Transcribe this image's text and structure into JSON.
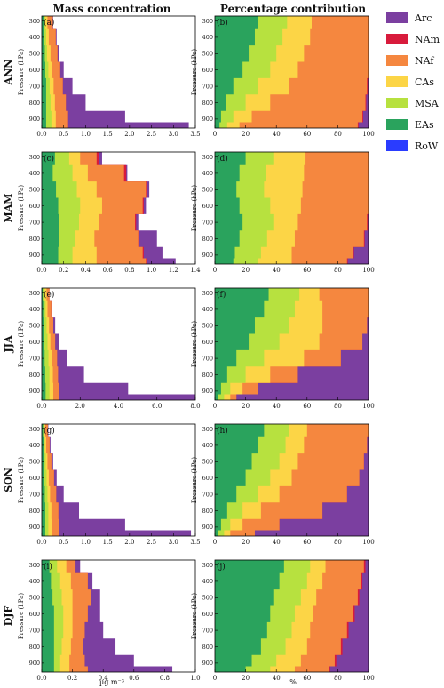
{
  "col_titles": [
    "Mass concentration",
    "Percentage contribution"
  ],
  "ylabel": "Pressure (hPa)",
  "left_xlabel": "µg m⁻³",
  "right_xlabel": "%",
  "legend": [
    {
      "name": "Arc",
      "color": "#7b3fa0"
    },
    {
      "name": "NAm",
      "color": "#d81b3c"
    },
    {
      "name": "NAf",
      "color": "#f5873f"
    },
    {
      "name": "CAs",
      "color": "#fcd546"
    },
    {
      "name": "MSA",
      "color": "#b7e13f"
    },
    {
      "name": "EAs",
      "color": "#2aa35d"
    },
    {
      "name": "RoW",
      "color": "#2a3cff"
    }
  ],
  "chart_data": [
    {
      "id": "ANN-mass",
      "row": "ANN",
      "panel": "(a)",
      "type": "area",
      "xlim": [
        0,
        3.5
      ],
      "xticks": [
        "0.0",
        "0.5",
        "1.0",
        "1.5",
        "2.0",
        "2.5",
        "3.0",
        "3.5"
      ],
      "yticks": [
        "300",
        "400",
        "500",
        "600",
        "700",
        "800",
        "900"
      ],
      "pressure": [
        300,
        400,
        500,
        600,
        700,
        800,
        900,
        940
      ],
      "series": [
        {
          "name": "EAs",
          "values": [
            0.04,
            0.05,
            0.07,
            0.08,
            0.1,
            0.1,
            0.1,
            0.1
          ]
        },
        {
          "name": "MSA",
          "values": [
            0.08,
            0.1,
            0.12,
            0.15,
            0.18,
            0.2,
            0.22,
            0.22
          ]
        },
        {
          "name": "CAs",
          "values": [
            0.13,
            0.16,
            0.2,
            0.24,
            0.27,
            0.3,
            0.32,
            0.32
          ]
        },
        {
          "name": "NAf",
          "values": [
            0.25,
            0.32,
            0.36,
            0.42,
            0.48,
            0.55,
            0.6,
            0.6
          ]
        },
        {
          "name": "NAm",
          "values": [
            0.25,
            0.32,
            0.36,
            0.42,
            0.48,
            0.55,
            0.6,
            0.6
          ]
        },
        {
          "name": "Arc",
          "values": [
            0.26,
            0.34,
            0.4,
            0.5,
            0.7,
            1.0,
            1.9,
            3.35
          ]
        }
      ]
    },
    {
      "id": "ANN-pct",
      "row": "ANN",
      "panel": "(b)",
      "type": "area",
      "xlim": [
        0,
        100
      ],
      "xticks": [
        "0",
        "20",
        "40",
        "60",
        "80",
        "100"
      ],
      "yticks": [
        "300",
        "400",
        "500",
        "600",
        "700",
        "800",
        "900"
      ],
      "pressure": [
        300,
        400,
        500,
        600,
        700,
        800,
        900,
        940
      ],
      "series": [
        {
          "name": "EAs",
          "values": [
            28,
            26,
            22,
            18,
            12,
            7,
            4,
            3
          ]
        },
        {
          "name": "MSA",
          "values": [
            47,
            44,
            40,
            36,
            28,
            20,
            12,
            8
          ]
        },
        {
          "name": "CAs",
          "values": [
            63,
            62,
            58,
            54,
            48,
            36,
            24,
            16
          ]
        },
        {
          "name": "NAf",
          "values": [
            100,
            100,
            100,
            100,
            99,
            98,
            96,
            93
          ]
        },
        {
          "name": "NAm",
          "values": [
            100,
            100,
            100,
            100,
            99.5,
            98.5,
            96.5,
            93.5
          ]
        },
        {
          "name": "Arc",
          "values": [
            100,
            100,
            100,
            100,
            100,
            100,
            100,
            100
          ]
        }
      ]
    },
    {
      "id": "MAM-mass",
      "row": "MAM",
      "panel": "(c)",
      "type": "area",
      "xlim": [
        0,
        1.4
      ],
      "xticks": [
        "0.0",
        "0.2",
        "0.4",
        "0.6",
        "0.8",
        "1.0",
        "1.2",
        "1.4"
      ],
      "yticks": [
        "300",
        "400",
        "500",
        "600",
        "700",
        "800",
        "900"
      ],
      "pressure": [
        300,
        400,
        500,
        600,
        700,
        800,
        900,
        940
      ],
      "series": [
        {
          "name": "EAs",
          "values": [
            0.12,
            0.1,
            0.13,
            0.15,
            0.16,
            0.16,
            0.15,
            0.15
          ]
        },
        {
          "name": "MSA",
          "values": [
            0.25,
            0.28,
            0.32,
            0.35,
            0.34,
            0.3,
            0.28,
            0.28
          ]
        },
        {
          "name": "CAs",
          "values": [
            0.35,
            0.42,
            0.5,
            0.55,
            0.52,
            0.48,
            0.5,
            0.5
          ]
        },
        {
          "name": "NAf",
          "values": [
            0.5,
            0.75,
            0.95,
            0.92,
            0.85,
            0.88,
            0.92,
            0.95
          ]
        },
        {
          "name": "NAm",
          "values": [
            0.52,
            0.77,
            0.96,
            0.93,
            0.86,
            0.89,
            0.93,
            0.96
          ]
        },
        {
          "name": "Arc",
          "values": [
            0.55,
            0.78,
            0.98,
            0.95,
            0.88,
            1.05,
            1.1,
            1.22
          ]
        }
      ]
    },
    {
      "id": "MAM-pct",
      "row": "MAM",
      "panel": "(d)",
      "type": "area",
      "xlim": [
        0,
        100
      ],
      "xticks": [
        "0",
        "20",
        "40",
        "60",
        "80",
        "100"
      ],
      "yticks": [
        "300",
        "400",
        "500",
        "600",
        "700",
        "800",
        "900"
      ],
      "pressure": [
        300,
        400,
        500,
        600,
        700,
        800,
        900,
        940
      ],
      "series": [
        {
          "name": "EAs",
          "values": [
            20,
            16,
            14,
            16,
            18,
            16,
            13,
            12
          ]
        },
        {
          "name": "MSA",
          "values": [
            38,
            33,
            32,
            36,
            38,
            34,
            30,
            28
          ]
        },
        {
          "name": "CAs",
          "values": [
            59,
            58,
            57,
            56,
            54,
            52,
            50,
            50
          ]
        },
        {
          "name": "NAf",
          "values": [
            100,
            100,
            100,
            100,
            99,
            97,
            90,
            86
          ]
        },
        {
          "name": "NAm",
          "values": [
            100,
            100,
            100,
            100,
            99.5,
            97.5,
            90.5,
            86.5
          ]
        },
        {
          "name": "Arc",
          "values": [
            100,
            100,
            100,
            100,
            100,
            100,
            100,
            100
          ]
        }
      ]
    },
    {
      "id": "JJA-mass",
      "row": "JJA",
      "panel": "(e)",
      "type": "area",
      "xlim": [
        0,
        8.0
      ],
      "xticks": [
        "0.0",
        "2.0",
        "4.0",
        "6.0",
        "8.0"
      ],
      "yticks": [
        "300",
        "400",
        "500",
        "600",
        "700",
        "800",
        "900"
      ],
      "pressure": [
        300,
        400,
        500,
        600,
        700,
        800,
        900,
        940
      ],
      "series": [
        {
          "name": "EAs",
          "values": [
            0.05,
            0.08,
            0.1,
            0.12,
            0.15,
            0.18,
            0.2,
            0.2
          ]
        },
        {
          "name": "MSA",
          "values": [
            0.15,
            0.2,
            0.25,
            0.3,
            0.35,
            0.4,
            0.4,
            0.4
          ]
        },
        {
          "name": "CAs",
          "values": [
            0.25,
            0.3,
            0.38,
            0.45,
            0.52,
            0.58,
            0.6,
            0.6
          ]
        },
        {
          "name": "NAf",
          "values": [
            0.4,
            0.5,
            0.6,
            0.7,
            0.8,
            0.85,
            0.9,
            0.9
          ]
        },
        {
          "name": "NAm",
          "values": [
            0.4,
            0.5,
            0.6,
            0.7,
            0.8,
            0.85,
            0.9,
            0.9
          ]
        },
        {
          "name": "Arc",
          "values": [
            0.4,
            0.55,
            0.7,
            0.9,
            1.3,
            2.2,
            4.5,
            8.0
          ]
        }
      ]
    },
    {
      "id": "JJA-pct",
      "row": "JJA",
      "panel": "(f)",
      "type": "area",
      "xlim": [
        0,
        100
      ],
      "xticks": [
        "0",
        "20",
        "40",
        "60",
        "80",
        "100"
      ],
      "yticks": [
        "300",
        "400",
        "500",
        "600",
        "700",
        "800",
        "900"
      ],
      "pressure": [
        300,
        400,
        500,
        600,
        700,
        800,
        900,
        940
      ],
      "series": [
        {
          "name": "EAs",
          "values": [
            35,
            32,
            26,
            22,
            14,
            8,
            4,
            2
          ]
        },
        {
          "name": "MSA",
          "values": [
            55,
            52,
            48,
            42,
            32,
            20,
            10,
            6
          ]
        },
        {
          "name": "CAs",
          "values": [
            68,
            70,
            70,
            68,
            58,
            36,
            18,
            10
          ]
        },
        {
          "name": "NAf",
          "values": [
            100,
            100,
            99,
            96,
            82,
            54,
            28,
            14
          ]
        },
        {
          "name": "NAm",
          "values": [
            100,
            100,
            99,
            96,
            82,
            54,
            28,
            14
          ]
        },
        {
          "name": "Arc",
          "values": [
            100,
            100,
            100,
            100,
            100,
            100,
            100,
            100
          ]
        }
      ]
    },
    {
      "id": "SON-mass",
      "row": "SON",
      "panel": "(g)",
      "type": "area",
      "xlim": [
        0,
        3.5
      ],
      "xticks": [
        "0.0",
        "0.5",
        "1.0",
        "1.5",
        "2.0",
        "2.5",
        "3.0",
        "3.5"
      ],
      "yticks": [
        "300",
        "400",
        "500",
        "600",
        "700",
        "800",
        "900"
      ],
      "pressure": [
        300,
        400,
        500,
        600,
        700,
        800,
        900,
        940
      ],
      "series": [
        {
          "name": "EAs",
          "values": [
            0.03,
            0.04,
            0.05,
            0.06,
            0.07,
            0.08,
            0.08,
            0.08
          ]
        },
        {
          "name": "MSA",
          "values": [
            0.05,
            0.07,
            0.09,
            0.11,
            0.13,
            0.15,
            0.15,
            0.15
          ]
        },
        {
          "name": "CAs",
          "values": [
            0.08,
            0.1,
            0.13,
            0.16,
            0.19,
            0.22,
            0.24,
            0.24
          ]
        },
        {
          "name": "NAf",
          "values": [
            0.14,
            0.18,
            0.22,
            0.28,
            0.33,
            0.38,
            0.4,
            0.4
          ]
        },
        {
          "name": "NAm",
          "values": [
            0.14,
            0.18,
            0.22,
            0.28,
            0.33,
            0.38,
            0.4,
            0.4
          ]
        },
        {
          "name": "Arc",
          "values": [
            0.15,
            0.2,
            0.26,
            0.34,
            0.5,
            0.85,
            1.9,
            3.4
          ]
        }
      ]
    },
    {
      "id": "SON-pct",
      "row": "SON",
      "panel": "(h)",
      "type": "area",
      "xlim": [
        0,
        100
      ],
      "xticks": [
        "0",
        "20",
        "40",
        "60",
        "80",
        "100"
      ],
      "yticks": [
        "300",
        "400",
        "500",
        "600",
        "700",
        "800",
        "900"
      ],
      "pressure": [
        300,
        400,
        500,
        600,
        700,
        800,
        900,
        940
      ],
      "series": [
        {
          "name": "EAs",
          "values": [
            32,
            28,
            24,
            20,
            14,
            8,
            4,
            2
          ]
        },
        {
          "name": "MSA",
          "values": [
            48,
            46,
            42,
            36,
            28,
            18,
            10,
            6
          ]
        },
        {
          "name": "CAs",
          "values": [
            60,
            58,
            54,
            50,
            42,
            30,
            18,
            10
          ]
        },
        {
          "name": "NAf",
          "values": [
            100,
            99,
            97,
            94,
            86,
            70,
            42,
            26
          ]
        },
        {
          "name": "NAm",
          "values": [
            100,
            99,
            97,
            94,
            86,
            70,
            42,
            26
          ]
        },
        {
          "name": "Arc",
          "values": [
            100,
            100,
            100,
            100,
            100,
            100,
            100,
            100
          ]
        }
      ]
    },
    {
      "id": "DJF-mass",
      "row": "DJF",
      "panel": "(i)",
      "type": "area",
      "xlim": [
        0,
        1.0
      ],
      "xticks": [
        "0.0",
        "0.2",
        "0.4",
        "0.6",
        "0.8",
        "1.0"
      ],
      "yticks": [
        "300",
        "400",
        "500",
        "600",
        "700",
        "800",
        "900"
      ],
      "pressure": [
        300,
        400,
        500,
        600,
        700,
        800,
        900,
        940
      ],
      "series": [
        {
          "name": "EAs",
          "values": [
            0.05,
            0.06,
            0.07,
            0.08,
            0.08,
            0.08,
            0.08,
            0.08
          ]
        },
        {
          "name": "MSA",
          "values": [
            0.1,
            0.12,
            0.13,
            0.14,
            0.14,
            0.13,
            0.12,
            0.12
          ]
        },
        {
          "name": "CAs",
          "values": [
            0.16,
            0.19,
            0.2,
            0.2,
            0.2,
            0.19,
            0.18,
            0.18
          ]
        },
        {
          "name": "NAf",
          "values": [
            0.22,
            0.3,
            0.32,
            0.3,
            0.28,
            0.27,
            0.28,
            0.3
          ]
        },
        {
          "name": "NAm",
          "values": [
            0.22,
            0.3,
            0.32,
            0.3,
            0.28,
            0.27,
            0.28,
            0.3
          ]
        },
        {
          "name": "Arc",
          "values": [
            0.25,
            0.33,
            0.38,
            0.38,
            0.4,
            0.48,
            0.6,
            0.85
          ]
        }
      ]
    },
    {
      "id": "DJF-pct",
      "row": "DJF",
      "panel": "(j)",
      "type": "area",
      "xlim": [
        0,
        100
      ],
      "xticks": [
        "0",
        "20",
        "40",
        "60",
        "80",
        "100"
      ],
      "yticks": [
        "300",
        "400",
        "500",
        "600",
        "700",
        "800",
        "900"
      ],
      "pressure": [
        300,
        400,
        500,
        600,
        700,
        800,
        900,
        940
      ],
      "series": [
        {
          "name": "EAs",
          "values": [
            45,
            42,
            38,
            36,
            34,
            30,
            24,
            20
          ]
        },
        {
          "name": "MSA",
          "values": [
            62,
            60,
            56,
            52,
            50,
            46,
            40,
            36
          ]
        },
        {
          "name": "CAs",
          "values": [
            72,
            70,
            66,
            64,
            62,
            60,
            56,
            52
          ]
        },
        {
          "name": "NAf",
          "values": [
            97,
            95,
            93,
            90,
            86,
            82,
            78,
            74
          ]
        },
        {
          "name": "NAm",
          "values": [
            98,
            96,
            94,
            91,
            87,
            83,
            79,
            75
          ]
        },
        {
          "name": "Arc",
          "values": [
            100,
            100,
            100,
            100,
            100,
            100,
            100,
            100
          ]
        }
      ]
    }
  ]
}
